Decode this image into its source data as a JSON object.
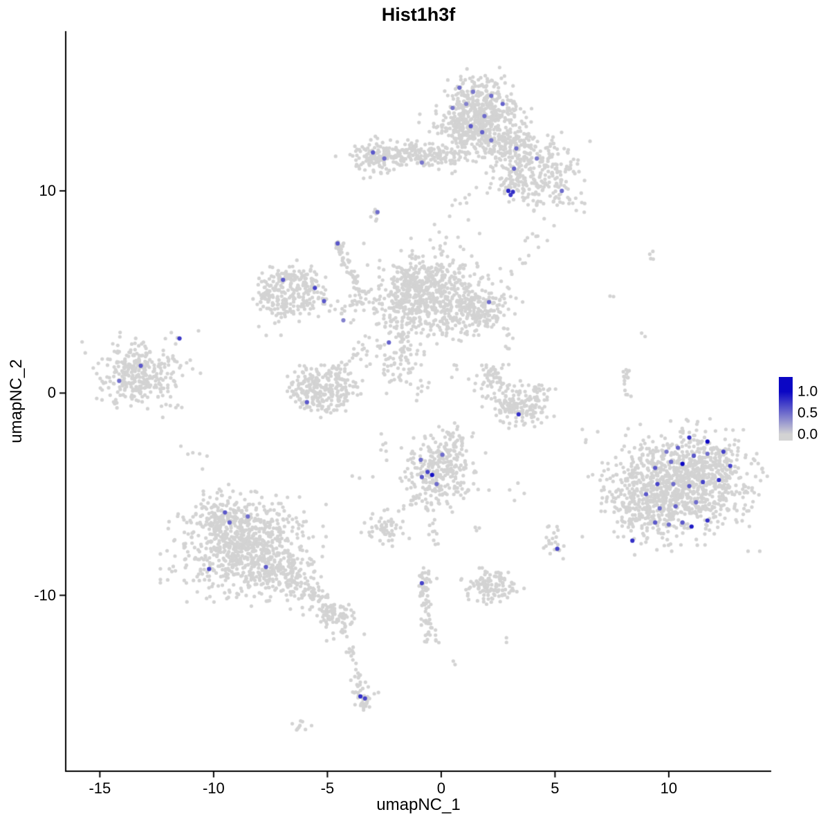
{
  "chart_data": {
    "type": "scatter",
    "title": "Hist1h3f",
    "xlabel": "umapNC_1",
    "ylabel": "umapNC_2",
    "xlim": [
      -16.5,
      14.5
    ],
    "ylim": [
      -18.7,
      17.9
    ],
    "grid": false,
    "xticks": {
      "values": [
        -15,
        -10,
        -5,
        0,
        5,
        10
      ],
      "labels": [
        "-15",
        "-10",
        "-5",
        "0",
        "5",
        "10"
      ]
    },
    "yticks": {
      "values": [
        10,
        0,
        -10
      ],
      "labels": [
        "10",
        "0",
        "-10"
      ]
    },
    "legend": {
      "position": "right",
      "labels": [
        "1.0",
        "0.5",
        "0.0"
      ],
      "fractions": [
        0.23,
        0.57,
        0.9
      ]
    },
    "colors": {
      "low": "#d3d3d3",
      "high": "#0b06c4",
      "point_grey": "#d3d3d3",
      "axis": "#000000",
      "background": "#ffffff"
    },
    "point_radius": {
      "base": 2.6,
      "expressed": 3.1
    },
    "seed": 42,
    "clusters": [
      {
        "t": "g",
        "cx": 1.6,
        "cy": 14.0,
        "sx": 0.85,
        "sy": 0.75,
        "n": 420
      },
      {
        "t": "g",
        "cx": 1.3,
        "cy": 12.8,
        "sx": 0.9,
        "sy": 0.5,
        "n": 160
      },
      {
        "t": "g",
        "cx": 2.9,
        "cy": 12.2,
        "sx": 0.7,
        "sy": 0.6,
        "n": 140
      },
      {
        "t": "g",
        "cx": 4.3,
        "cy": 11.3,
        "sx": 0.85,
        "sy": 0.75,
        "n": 170
      },
      {
        "t": "g",
        "cx": 5.0,
        "cy": 9.9,
        "sx": 0.65,
        "sy": 0.5,
        "n": 55
      },
      {
        "t": "g",
        "cx": 3.3,
        "cy": 10.3,
        "sx": 0.55,
        "sy": 0.5,
        "n": 60
      },
      {
        "t": "g",
        "cx": -1.7,
        "cy": 11.8,
        "sx": 1.05,
        "sy": 0.32,
        "n": 150
      },
      {
        "t": "g",
        "cx": -3.0,
        "cy": 11.6,
        "sx": 0.45,
        "sy": 0.42,
        "n": 70
      },
      {
        "t": "g",
        "cx": 0.1,
        "cy": 11.6,
        "sx": 0.7,
        "sy": 0.35,
        "n": 60
      },
      {
        "t": "g",
        "cx": -2.8,
        "cy": 8.9,
        "sx": 0.15,
        "sy": 0.15,
        "n": 6
      },
      {
        "t": "g",
        "cx": 1.0,
        "cy": 9.6,
        "sx": 0.3,
        "sy": 0.3,
        "n": 7
      },
      {
        "t": "g",
        "cx": 0.6,
        "cy": 7.6,
        "sx": 0.7,
        "sy": 0.6,
        "n": 12
      },
      {
        "t": "l",
        "x1": 3.2,
        "y1": 6.0,
        "x2": 4.8,
        "y2": 8.6,
        "j": 0.25,
        "n": 15
      },
      {
        "t": "l",
        "x1": -4.55,
        "y1": 7.3,
        "x2": -3.5,
        "y2": 4.8,
        "j": 0.12,
        "n": 42
      },
      {
        "t": "g",
        "cx": -4.55,
        "cy": 7.35,
        "sx": 0.16,
        "sy": 0.16,
        "n": 12
      },
      {
        "t": "r",
        "cx": -6.65,
        "cy": 4.95,
        "r": 0.85,
        "w": 0.25,
        "ax": 1.2,
        "ay": 1.1,
        "n": 220
      },
      {
        "t": "g",
        "cx": -6.65,
        "cy": 4.95,
        "sx": 0.5,
        "sy": 0.45,
        "n": 45
      },
      {
        "t": "l",
        "x1": -5.4,
        "y1": 4.2,
        "x2": -2.6,
        "y2": 4.6,
        "j": 0.3,
        "n": 40
      },
      {
        "t": "g",
        "cx": -0.6,
        "cy": 5.3,
        "sx": 1.0,
        "sy": 0.75,
        "n": 430
      },
      {
        "t": "g",
        "cx": -1.6,
        "cy": 4.2,
        "sx": 0.7,
        "sy": 0.5,
        "n": 120
      },
      {
        "t": "g",
        "cx": 1.5,
        "cy": 4.2,
        "sx": 0.75,
        "sy": 0.6,
        "n": 230
      },
      {
        "t": "g",
        "cx": -0.3,
        "cy": 3.3,
        "sx": 0.8,
        "sy": 0.5,
        "n": 60
      },
      {
        "t": "g",
        "cx": -2.0,
        "cy": 2.2,
        "sx": 0.8,
        "sy": 0.7,
        "n": 35
      },
      {
        "t": "l",
        "x1": -1.7,
        "y1": 3.0,
        "x2": -1.4,
        "y2": 0.7,
        "j": 0.15,
        "n": 22
      },
      {
        "t": "g",
        "cx": -13.4,
        "cy": 0.9,
        "sx": 0.85,
        "sy": 0.75,
        "n": 300
      },
      {
        "t": "g",
        "cx": -11.9,
        "cy": 1.4,
        "sx": 0.5,
        "sy": 0.6,
        "n": 22
      },
      {
        "t": "r",
        "cx": -5.2,
        "cy": 0.2,
        "r": 0.8,
        "w": 0.28,
        "ax": 1.3,
        "ay": 0.95,
        "n": 200
      },
      {
        "t": "g",
        "cx": -5.2,
        "cy": 0.2,
        "sx": 0.6,
        "sy": 0.45,
        "n": 70
      },
      {
        "t": "l",
        "x1": -4.0,
        "y1": 1.4,
        "x2": -3.0,
        "y2": 3.0,
        "j": 0.2,
        "n": 18
      },
      {
        "t": "g",
        "cx": -2.0,
        "cy": 1.2,
        "sx": 0.4,
        "sy": 0.5,
        "n": 28
      },
      {
        "t": "g",
        "cx": -1.0,
        "cy": 0.3,
        "sx": 0.3,
        "sy": 0.3,
        "n": 10
      },
      {
        "t": "g",
        "cx": 2.3,
        "cy": 0.7,
        "sx": 0.35,
        "sy": 0.5,
        "n": 60
      },
      {
        "t": "g",
        "cx": 3.0,
        "cy": -0.5,
        "sx": 0.4,
        "sy": 0.5,
        "n": 70
      },
      {
        "t": "g",
        "cx": 3.7,
        "cy": -0.9,
        "sx": 0.45,
        "sy": 0.35,
        "n": 60
      },
      {
        "t": "g",
        "cx": 4.2,
        "cy": -0.1,
        "sx": 0.3,
        "sy": 0.4,
        "n": 40
      },
      {
        "t": "g",
        "cx": 2.9,
        "cy": 2.6,
        "sx": 0.25,
        "sy": 0.35,
        "n": 9
      },
      {
        "t": "g",
        "cx": 0.0,
        "cy": -3.9,
        "sx": 0.75,
        "sy": 0.8,
        "n": 270
      },
      {
        "t": "g",
        "cx": 0.4,
        "cy": -2.6,
        "sx": 0.4,
        "sy": 0.4,
        "n": 40
      },
      {
        "t": "l",
        "x1": -0.4,
        "y1": -5.3,
        "x2": -0.3,
        "y2": -7.5,
        "j": 0.15,
        "n": 15
      },
      {
        "t": "g",
        "cx": 10.4,
        "cy": -4.6,
        "sx": 1.5,
        "sy": 1.15,
        "n": 950
      },
      {
        "t": "g",
        "cx": 11.9,
        "cy": -3.3,
        "sx": 0.8,
        "sy": 0.8,
        "n": 150
      },
      {
        "t": "g",
        "cx": 9.0,
        "cy": -5.9,
        "sx": 0.8,
        "sy": 0.75,
        "n": 120
      },
      {
        "t": "l",
        "x1": 8.2,
        "y1": -0.2,
        "x2": 8.1,
        "y2": 1.2,
        "j": 0.1,
        "n": 15
      },
      {
        "t": "g",
        "cx": 9.3,
        "cy": 6.9,
        "sx": 0.15,
        "sy": 0.2,
        "n": 4
      },
      {
        "t": "g",
        "cx": 7.5,
        "cy": 4.9,
        "sx": 0.1,
        "sy": 0.1,
        "n": 2
      },
      {
        "t": "g",
        "cx": 8.9,
        "cy": 2.9,
        "sx": 0.1,
        "sy": 0.1,
        "n": 2
      },
      {
        "t": "g",
        "cx": -8.7,
        "cy": -7.6,
        "sx": 1.3,
        "sy": 1.1,
        "n": 750
      },
      {
        "t": "g",
        "cx": -7.0,
        "cy": -8.9,
        "sx": 0.8,
        "sy": 0.6,
        "n": 130
      },
      {
        "t": "g",
        "cx": -9.6,
        "cy": -6.0,
        "sx": 0.7,
        "sy": 0.5,
        "n": 90
      },
      {
        "t": "l",
        "x1": -6.2,
        "y1": -9.6,
        "x2": -4.6,
        "y2": -10.9,
        "j": 0.3,
        "n": 80
      },
      {
        "t": "g",
        "cx": -4.5,
        "cy": -11.2,
        "sx": 0.4,
        "sy": 0.4,
        "n": 60
      },
      {
        "t": "g",
        "cx": -2.4,
        "cy": -6.7,
        "sx": 0.45,
        "sy": 0.35,
        "n": 55
      },
      {
        "t": "g",
        "cx": -1.3,
        "cy": -5.3,
        "sx": 0.3,
        "sy": 0.25,
        "n": 10
      },
      {
        "t": "l",
        "x1": -0.8,
        "y1": -8.9,
        "x2": -0.5,
        "y2": -12.4,
        "j": 0.15,
        "n": 58
      },
      {
        "t": "g",
        "cx": -0.7,
        "cy": -9.2,
        "sx": 0.25,
        "sy": 0.25,
        "n": 14
      },
      {
        "t": "g",
        "cx": 2.1,
        "cy": -9.6,
        "sx": 0.55,
        "sy": 0.4,
        "n": 120
      },
      {
        "t": "g",
        "cx": 4.95,
        "cy": -7.35,
        "sx": 0.25,
        "sy": 0.3,
        "n": 22
      },
      {
        "t": "l",
        "x1": -4.3,
        "y1": -11.6,
        "x2": -3.5,
        "y2": -14.6,
        "j": 0.12,
        "n": 26
      },
      {
        "t": "g",
        "cx": -3.45,
        "cy": -15.1,
        "sx": 0.25,
        "sy": 0.3,
        "n": 35
      },
      {
        "t": "g",
        "cx": -6.2,
        "cy": -16.4,
        "sx": 0.25,
        "sy": 0.15,
        "n": 9
      },
      {
        "t": "g",
        "cx": 3.0,
        "cy": -12.2,
        "sx": 0.1,
        "sy": 0.1,
        "n": 2
      },
      {
        "t": "g",
        "cx": 1.7,
        "cy": -6.6,
        "sx": 0.15,
        "sy": 0.1,
        "n": 3
      },
      {
        "t": "g",
        "cx": 6.3,
        "cy": -2.3,
        "sx": 0.1,
        "sy": 0.1,
        "n": 2
      },
      {
        "t": "g",
        "cx": 0.5,
        "cy": -13.4,
        "sx": 0.1,
        "sy": 0.1,
        "n": 2
      },
      {
        "t": "g",
        "cx": 3.3,
        "cy": -4.6,
        "sx": 0.3,
        "sy": 0.3,
        "n": 4
      },
      {
        "t": "g",
        "cx": -2.6,
        "cy": -2.6,
        "sx": 0.3,
        "sy": 0.3,
        "n": 6
      },
      {
        "t": "g",
        "cx": 0.8,
        "cy": 0.9,
        "sx": 0.3,
        "sy": 0.3,
        "n": 5
      },
      {
        "t": "g",
        "cx": -7.6,
        "cy": 2.9,
        "sx": 0.2,
        "sy": 0.2,
        "n": 4
      },
      {
        "t": "g",
        "cx": -10.6,
        "cy": -3.3,
        "sx": 0.3,
        "sy": 0.4,
        "n": 6
      },
      {
        "t": "g",
        "cx": -11.9,
        "cy": -0.4,
        "sx": 0.3,
        "sy": 0.3,
        "n": 5
      },
      {
        "t": "g",
        "cx": -3.6,
        "cy": -4.1,
        "sx": 0.25,
        "sy": 0.25,
        "n": 3
      }
    ],
    "expressed_points": [
      [
        0.8,
        15.1,
        0.5
      ],
      [
        1.4,
        14.9,
        0.45
      ],
      [
        2.2,
        14.7,
        0.5
      ],
      [
        2.7,
        14.3,
        0.55
      ],
      [
        1.1,
        14.3,
        0.4
      ],
      [
        0.5,
        14.1,
        0.45
      ],
      [
        1.9,
        13.7,
        0.5
      ],
      [
        1.3,
        13.2,
        0.6
      ],
      [
        1.8,
        12.9,
        0.55
      ],
      [
        2.2,
        12.5,
        0.45
      ],
      [
        3.3,
        12.1,
        0.5
      ],
      [
        4.2,
        11.6,
        0.45
      ],
      [
        3.2,
        11.1,
        0.55
      ],
      [
        5.3,
        10.0,
        0.5
      ],
      [
        2.95,
        10.0,
        0.85
      ],
      [
        3.15,
        9.95,
        0.8
      ],
      [
        3.05,
        9.8,
        0.75
      ],
      [
        -3.0,
        11.9,
        0.6
      ],
      [
        -2.5,
        11.6,
        0.5
      ],
      [
        -0.85,
        11.4,
        0.45
      ],
      [
        -2.8,
        8.95,
        0.5
      ],
      [
        -4.55,
        7.4,
        0.6
      ],
      [
        -6.95,
        5.6,
        0.6
      ],
      [
        -5.55,
        5.2,
        0.7
      ],
      [
        -5.15,
        4.55,
        0.6
      ],
      [
        -4.3,
        3.6,
        0.4
      ],
      [
        2.1,
        4.5,
        0.5
      ],
      [
        -2.3,
        2.5,
        0.55
      ],
      [
        -11.5,
        2.7,
        0.75
      ],
      [
        -13.2,
        1.35,
        0.6
      ],
      [
        -14.15,
        0.6,
        0.5
      ],
      [
        -5.9,
        -0.45,
        0.6
      ],
      [
        3.4,
        -1.05,
        0.8
      ],
      [
        -0.9,
        -3.3,
        0.5
      ],
      [
        0.05,
        -3.05,
        0.5
      ],
      [
        -0.6,
        -3.9,
        0.7
      ],
      [
        -0.85,
        -4.15,
        0.6
      ],
      [
        -0.4,
        -4.05,
        0.95
      ],
      [
        -0.2,
        -4.5,
        0.5
      ],
      [
        8.4,
        -7.3,
        0.8
      ],
      [
        9.4,
        -6.4,
        0.6
      ],
      [
        10.0,
        -6.5,
        0.5
      ],
      [
        10.6,
        -6.4,
        0.6
      ],
      [
        11.0,
        -6.6,
        0.9
      ],
      [
        11.7,
        -6.3,
        0.8
      ],
      [
        9.6,
        -5.7,
        0.5
      ],
      [
        10.3,
        -5.6,
        0.55
      ],
      [
        11.2,
        -5.4,
        0.5
      ],
      [
        9.0,
        -5.0,
        0.6
      ],
      [
        9.5,
        -4.5,
        0.7
      ],
      [
        10.2,
        -4.5,
        0.5
      ],
      [
        10.9,
        -4.6,
        0.6
      ],
      [
        11.5,
        -4.4,
        0.7
      ],
      [
        12.2,
        -4.3,
        0.8
      ],
      [
        12.7,
        -3.6,
        0.7
      ],
      [
        9.4,
        -3.7,
        0.6
      ],
      [
        10.1,
        -3.4,
        0.5
      ],
      [
        10.6,
        -3.5,
        1.0
      ],
      [
        11.1,
        -3.1,
        0.6
      ],
      [
        11.7,
        -3.0,
        0.5
      ],
      [
        10.4,
        -2.7,
        0.55
      ],
      [
        11.7,
        -2.4,
        1.0
      ],
      [
        12.4,
        -2.9,
        0.7
      ],
      [
        10.9,
        -2.2,
        0.8
      ],
      [
        9.9,
        -2.9,
        0.45
      ],
      [
        -9.5,
        -5.9,
        0.6
      ],
      [
        -8.5,
        -6.1,
        0.5
      ],
      [
        -9.3,
        -6.4,
        0.55
      ],
      [
        -10.2,
        -8.7,
        0.7
      ],
      [
        -7.7,
        -8.6,
        0.6
      ],
      [
        -0.85,
        -9.4,
        0.7
      ],
      [
        5.1,
        -7.7,
        0.7
      ],
      [
        -3.55,
        -15.0,
        0.8
      ],
      [
        -3.35,
        -15.1,
        0.7
      ]
    ]
  }
}
